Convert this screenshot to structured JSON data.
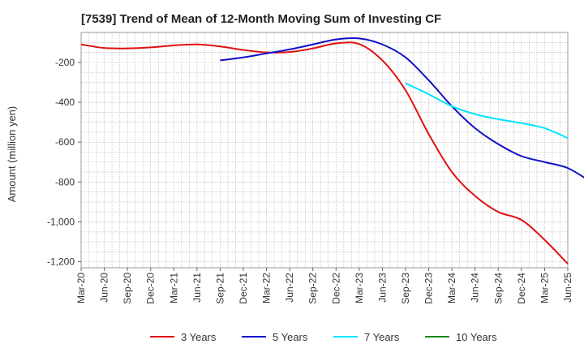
{
  "chart_data": {
    "type": "line",
    "title": "[7539]  Trend of Mean of 12-Month Moving Sum of Investing CF",
    "xlabel": "",
    "ylabel": "Amount (million yen)",
    "ylim": [
      -1230,
      -50
    ],
    "yticks": [
      -200,
      -400,
      -600,
      -800,
      -1000,
      -1200
    ],
    "ytick_labels": [
      "-200",
      "-400",
      "-600",
      "-800",
      "-1,000",
      "-1,200"
    ],
    "x_tick_labels": [
      "Mar-20",
      "Jun-20",
      "Sep-20",
      "Dec-20",
      "Mar-21",
      "Jun-21",
      "Sep-21",
      "Dec-21",
      "Mar-22",
      "Jun-22",
      "Sep-22",
      "Dec-22",
      "Mar-23",
      "Jun-23",
      "Sep-23",
      "Dec-23",
      "Mar-24",
      "Jun-24",
      "Sep-24",
      "Dec-24",
      "Mar-25",
      "Jun-25"
    ],
    "grid": true,
    "legend_position": "bottom",
    "series": [
      {
        "name": "3 Years",
        "color": "#e01010",
        "start_index": 0,
        "values": [
          -110,
          -128,
          -130,
          -125,
          -115,
          -110,
          -120,
          -138,
          -150,
          -148,
          -130,
          -105,
          -108,
          -190,
          -340,
          -560,
          -750,
          -870,
          -950,
          -990,
          -1090,
          -1210
        ]
      },
      {
        "name": "5 Years",
        "color": "#1010cc",
        "start_index": 6,
        "values": [
          -190,
          -175,
          -155,
          -135,
          -110,
          -85,
          -80,
          -110,
          -175,
          -290,
          -420,
          -530,
          -610,
          -670,
          -700,
          -730,
          -800
        ]
      },
      {
        "name": "7 Years",
        "color": "#00e5ff",
        "start_index": 14,
        "values": [
          -305,
          -360,
          -420,
          -460,
          -485,
          -505,
          -530,
          -580
        ]
      },
      {
        "name": "10 Years",
        "color": "#1a8a1a",
        "start_index": 0,
        "values": []
      }
    ]
  }
}
